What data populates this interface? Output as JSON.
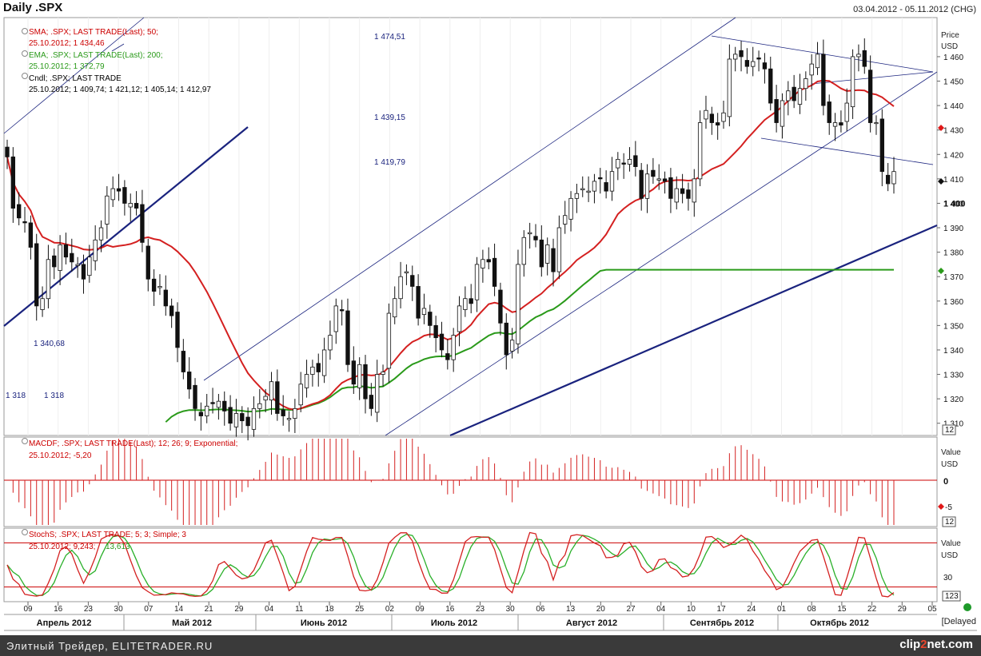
{
  "header": {
    "title": "Daily .SPX",
    "date_range": "03.04.2012 - 05.11.2012 (CHG)"
  },
  "price_panel": {
    "legend": [
      {
        "line1": "SMA; .SPX; LAST TRADE(Last); 50;",
        "line2": "25.10.2012; 1 434,46",
        "color": "#cc0000"
      },
      {
        "line1": "EMA; .SPX; LAST TRADE(Last); 200;",
        "line2": "25.10.2012; 1 372,79",
        "color": "#2a9a1a"
      },
      {
        "line1": "Cndl; .SPX; LAST TRADE",
        "line2": "25.10.2012; 1 409,74; 1 421,12; 1 405,14; 1 412,97",
        "color": "#000000"
      }
    ],
    "axis_title": [
      "Price",
      "USD"
    ],
    "annotations": [
      "1 474,51",
      "1 439,15",
      "1 419,79",
      "1 340,68",
      "1 318",
      "1 318"
    ],
    "ticks": [
      "1 460",
      "1 450",
      "1 440",
      "1 430",
      "1 420",
      "1 410",
      "1 400",
      "1 390",
      "1 380",
      "1 370",
      "1 360",
      "1 350",
      "1 340",
      "1 330",
      "1 320",
      "1 310"
    ],
    "zoom": "12"
  },
  "macd_panel": {
    "legend_line1": "MACDF; .SPX; LAST TRADE(Last); 12; 26; 9; Exponential;",
    "legend_line2": "25.10.2012; -5,20",
    "axis_title": [
      "Value",
      "USD"
    ],
    "ticks": [
      "0",
      "-5"
    ],
    "zoom": "12"
  },
  "stoch_panel": {
    "legend_line1": "StochS; .SPX; LAST TRADE; 5; 3; Simple; 3",
    "legend_line2a": "25.10.2012; 9,243;",
    "legend_line2b": "13,613",
    "axis_title": [
      "Value",
      "USD"
    ],
    "ticks": [
      "30"
    ],
    "zoom": "123"
  },
  "x_axis": {
    "day_labels": [
      "09",
      "16",
      "23",
      "30",
      "07",
      "14",
      "21",
      "29",
      "04",
      "11",
      "18",
      "25",
      "02",
      "09",
      "16",
      "23",
      "30",
      "06",
      "13",
      "20",
      "27",
      "04",
      "10",
      "17",
      "24",
      "01",
      "08",
      "15",
      "22",
      "29",
      "05"
    ],
    "months": [
      "Апрель 2012",
      "Май 2012",
      "Июнь 2012",
      "Июль 2012",
      "Август 2012",
      "Сентябрь 2012",
      "Октябрь 2012"
    ]
  },
  "status": {
    "delayed": "[Delayed"
  },
  "footer": {
    "text": "Элитный Трейдер, ELITETRADER.RU",
    "logo_a": "clip",
    "logo_b": "2",
    "logo_c": "net.com"
  },
  "chart_data": {
    "type": "candlestick",
    "title": "Daily .SPX",
    "ylabel": "Price USD",
    "ylim": [
      1305,
      1476
    ],
    "close_series": [
      1419,
      1398,
      1394,
      1392,
      1382,
      1358,
      1361,
      1377,
      1374,
      1383,
      1378,
      1376,
      1375,
      1369,
      1378,
      1385,
      1390,
      1403,
      1406,
      1405,
      1400,
      1400,
      1398,
      1384,
      1369,
      1364,
      1366,
      1358,
      1354,
      1341,
      1331,
      1324,
      1316,
      1313,
      1317,
      1318,
      1319,
      1315,
      1310,
      1314,
      1311,
      1309,
      1316,
      1318,
      1321,
      1327,
      1314,
      1313,
      1312,
      1316,
      1326,
      1330,
      1333,
      1331,
      1340,
      1346,
      1358,
      1356,
      1334,
      1326,
      1334,
      1320,
      1316,
      1330,
      1331,
      1355,
      1361,
      1370,
      1372,
      1366,
      1353,
      1357,
      1350,
      1345,
      1340,
      1336,
      1346,
      1358,
      1361,
      1359,
      1375,
      1377,
      1376,
      1366,
      1351,
      1338,
      1344,
      1375,
      1386,
      1388,
      1385,
      1374,
      1383,
      1372,
      1390,
      1395,
      1402,
      1404,
      1406,
      1405,
      1409,
      1410,
      1405,
      1413,
      1418,
      1416,
      1418,
      1415,
      1402,
      1412,
      1411,
      1410,
      1409,
      1402,
      1406,
      1404,
      1402,
      1410,
      1433,
      1438,
      1433,
      1432,
      1437,
      1459,
      1461,
      1460,
      1456,
      1458,
      1459,
      1455,
      1441,
      1433,
      1442,
      1446,
      1442,
      1447,
      1451,
      1457,
      1461,
      1440,
      1433,
      1433,
      1432,
      1441,
      1460,
      1461,
      1456,
      1433,
      1433,
      1413,
      1408,
      1413
    ],
    "sma50_end": 1434.46,
    "ema200_end": 1372.79,
    "last_candle": {
      "date": "25.10.2012",
      "open": 1409.74,
      "high": 1421.12,
      "low": 1405.14,
      "close": 1412.97
    },
    "macd": {
      "name": "MACDF 12 26 9",
      "last": -5.2
    },
    "stoch": {
      "name": "StochS 5 3 3",
      "k": 9.243,
      "d": 13.613,
      "levels": [
        20,
        80
      ]
    }
  }
}
